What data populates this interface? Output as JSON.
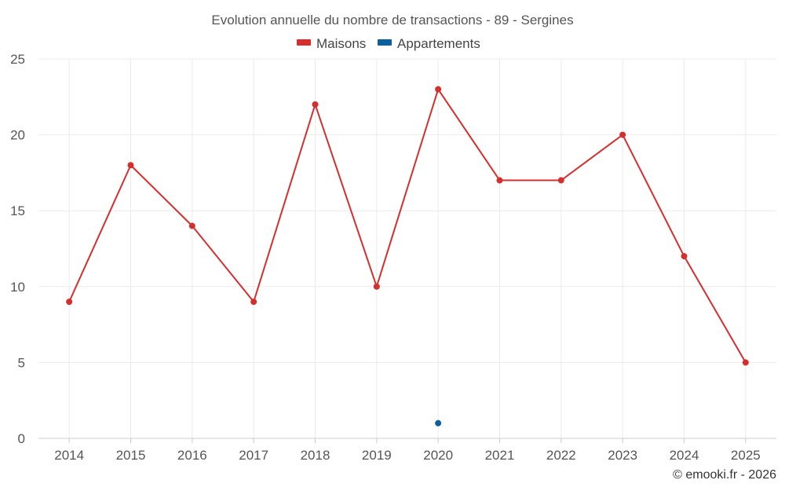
{
  "chart_data": {
    "type": "line",
    "title": "Evolution annuelle du nombre de transactions - 89 - Sergines",
    "categories": [
      "2014",
      "2015",
      "2016",
      "2017",
      "2018",
      "2019",
      "2020",
      "2021",
      "2022",
      "2023",
      "2024",
      "2025"
    ],
    "series": [
      {
        "name": "Maisons",
        "color": "#d32f2f",
        "values": [
          9,
          18,
          14,
          9,
          22,
          10,
          23,
          17,
          17,
          20,
          12,
          5
        ]
      },
      {
        "name": "Appartements",
        "color": "#0b5f9a",
        "values": [
          null,
          null,
          null,
          null,
          null,
          null,
          1,
          null,
          null,
          null,
          null,
          null
        ]
      }
    ],
    "ylim": [
      0,
      25
    ],
    "yticks": [
      0,
      5,
      10,
      15,
      20,
      25
    ],
    "grid": true,
    "legend": "top-center",
    "xlabel": "",
    "ylabel": ""
  },
  "credit": "© emooki.fr - 2026"
}
